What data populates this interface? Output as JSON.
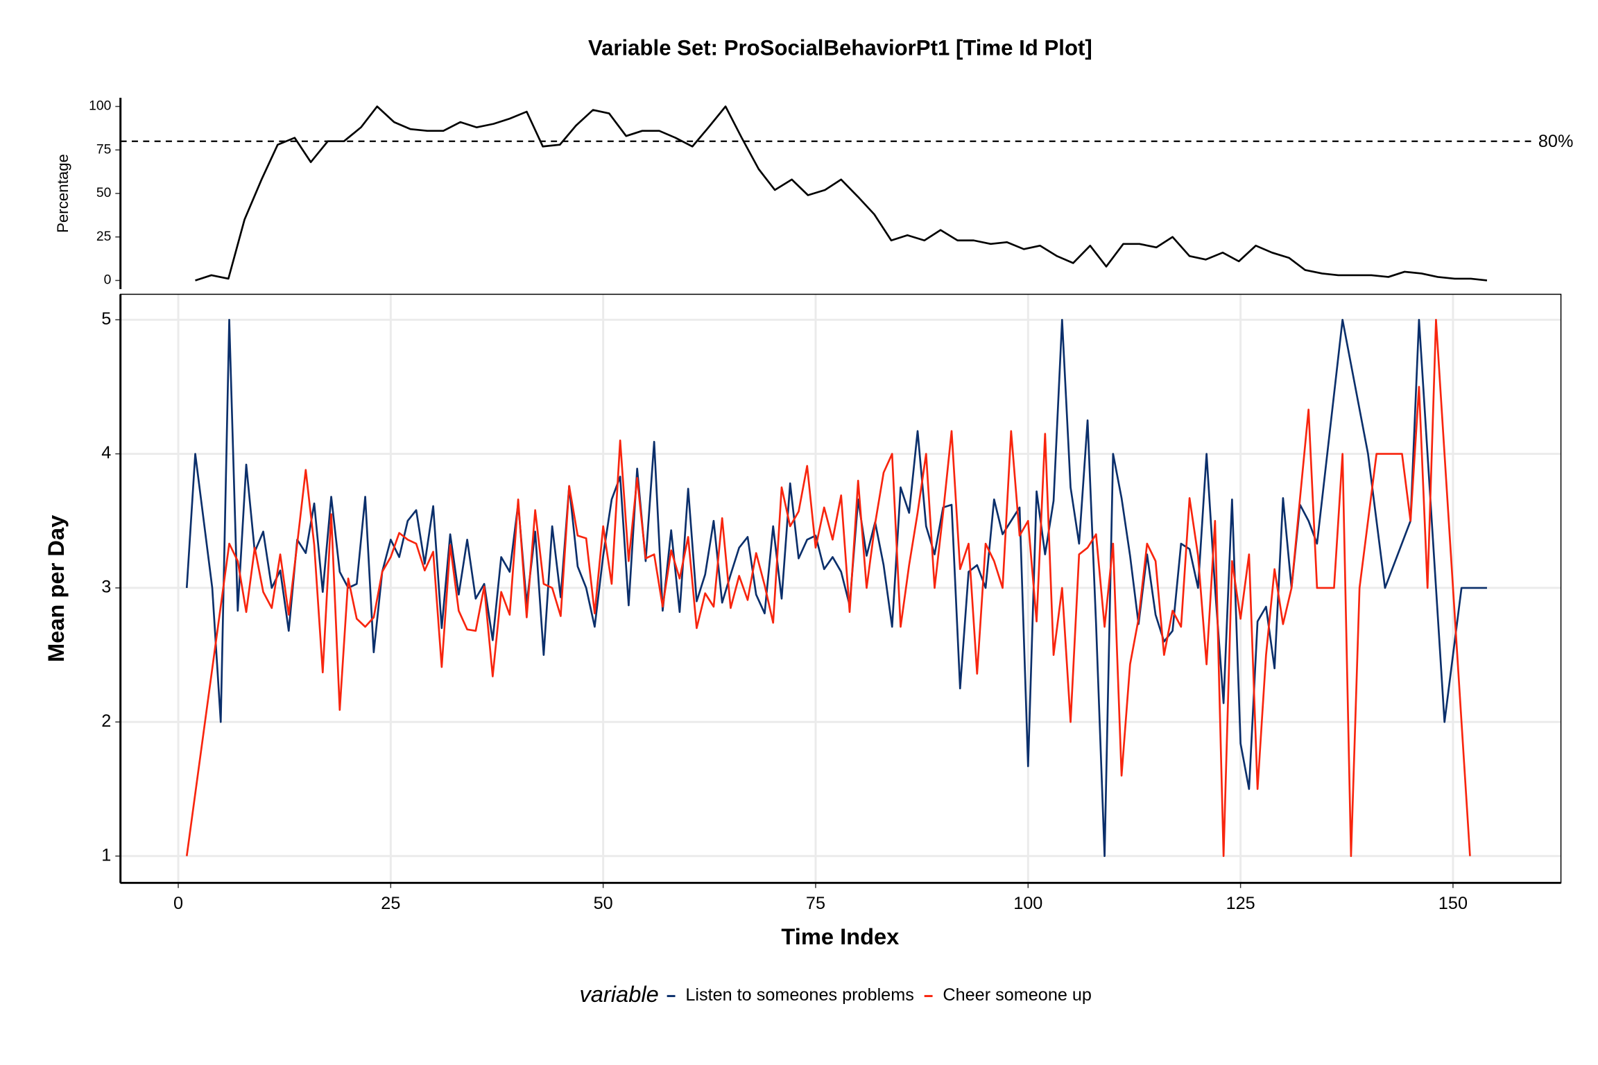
{
  "chart_data": [
    {
      "type": "line",
      "title": "Variable Set: ProSocialBehaviorPt1 [Time Id Plot]",
      "ylabel": "Percentage",
      "color": "#000000",
      "x": [
        2,
        3.9,
        5.9,
        7.8,
        9.8,
        11.7,
        13.7,
        15.6,
        17.6,
        19.5,
        21.5,
        23.4,
        25.4,
        27.3,
        29.3,
        31.2,
        33.2,
        35.1,
        37.1,
        39,
        41,
        42.9,
        44.9,
        46.8,
        48.8,
        50.7,
        52.7,
        54.6,
        56.6,
        58.5,
        60.5,
        62.4,
        64.4,
        66.3,
        68.3,
        70.2,
        72.2,
        74.1,
        76.1,
        78,
        80,
        81.9,
        83.9,
        85.8,
        87.8,
        89.7,
        91.7,
        93.6,
        95.6,
        97.5,
        99.5,
        101.4,
        103.4,
        105.3,
        107.3,
        109.2,
        111.2,
        113.1,
        115.1,
        117,
        119,
        120.9,
        122.9,
        124.8,
        126.8,
        128.7,
        130.7,
        132.6,
        134.6,
        136.5,
        138.5,
        140.4,
        142.4,
        144.3,
        146.3,
        148.2,
        150.2,
        152.1,
        154
      ],
      "values": [
        0,
        3,
        1,
        35,
        58,
        78,
        82,
        68,
        80,
        80,
        88,
        100,
        91,
        87,
        86,
        86,
        91,
        88,
        90,
        93,
        97,
        77,
        78,
        89,
        98,
        96,
        83,
        86,
        86,
        82,
        77,
        88,
        100,
        82,
        64,
        52,
        58,
        49,
        52,
        58,
        48,
        38,
        23,
        26,
        23,
        29,
        23,
        23,
        21,
        22,
        18,
        20,
        14,
        10,
        20,
        8,
        21,
        21,
        19,
        25,
        14,
        12,
        16,
        11,
        20,
        16,
        13,
        6,
        4,
        3,
        3,
        3,
        2,
        5,
        4,
        2,
        1,
        1,
        0
      ],
      "hline": {
        "value": 80,
        "label": "80%",
        "style": "dashed"
      },
      "xlim": [
        -6.8,
        162.7
      ],
      "ylim": [
        -5,
        105
      ],
      "yticks": [
        0,
        25,
        50,
        75,
        100
      ]
    },
    {
      "type": "line",
      "xlabel": "Time Index",
      "ylabel": "Mean per Day",
      "legend_title": "variable",
      "legend": "bottom",
      "grid": true,
      "xlim": [
        -6.8,
        162.7
      ],
      "xticks": [
        0,
        25,
        50,
        75,
        100,
        125,
        150
      ],
      "ylim": [
        0.8,
        5.19
      ],
      "yticks": [
        1,
        2,
        3,
        4,
        5
      ],
      "series": [
        {
          "name": "Listen to someones problems",
          "color": "#0b2f6b",
          "x": [
            1,
            2,
            4,
            5,
            6,
            7,
            8,
            9,
            10,
            11,
            12,
            13,
            14,
            15,
            16,
            17,
            18,
            19,
            20,
            21,
            22,
            23,
            24,
            25,
            26,
            27,
            28,
            29,
            30,
            31,
            32,
            33,
            34,
            35,
            36,
            37,
            38,
            39,
            40,
            41,
            42,
            43,
            44,
            45,
            46,
            47,
            48,
            49,
            50,
            51,
            52,
            53,
            54,
            55,
            56,
            57,
            58,
            59,
            60,
            61,
            62,
            63,
            64,
            65,
            66,
            67,
            68,
            69,
            70,
            71,
            72,
            73,
            74,
            75,
            76,
            77,
            78,
            79,
            80,
            81,
            82,
            83,
            84,
            85,
            86,
            87,
            88,
            89,
            90,
            91,
            92,
            93,
            94,
            95,
            96,
            97,
            98,
            99,
            100,
            101,
            102,
            103,
            104,
            105,
            106,
            107,
            108,
            109,
            110,
            111,
            112,
            113,
            114,
            115,
            116,
            117,
            118,
            119,
            120,
            121,
            122,
            123,
            124,
            125,
            126,
            127,
            128,
            129,
            130,
            131,
            132,
            133,
            134,
            137,
            140,
            142,
            145,
            146,
            148,
            149,
            151,
            154
          ],
          "values": [
            3,
            4,
            3,
            2,
            5,
            2.83,
            3.92,
            3.27,
            3.42,
            3,
            3.13,
            2.68,
            3.36,
            3.26,
            3.63,
            2.97,
            3.68,
            3.12,
            3,
            3.03,
            3.68,
            2.52,
            3.12,
            3.36,
            3.23,
            3.5,
            3.58,
            3.18,
            3.61,
            2.7,
            3.4,
            2.95,
            3.36,
            2.92,
            3.03,
            2.61,
            3.23,
            3.12,
            3.63,
            2.88,
            3.42,
            2.5,
            3.46,
            2.93,
            3.76,
            3.16,
            3,
            2.71,
            3.24,
            3.66,
            3.83,
            2.87,
            3.89,
            3.2,
            4.09,
            2.83,
            3.43,
            2.82,
            3.74,
            2.9,
            3.1,
            3.5,
            2.89,
            3.1,
            3.3,
            3.38,
            2.95,
            2.81,
            3.46,
            2.92,
            3.78,
            3.22,
            3.36,
            3.39,
            3.14,
            3.23,
            3.12,
            2.87,
            3.66,
            3.24,
            3.49,
            3.17,
            2.71,
            3.75,
            3.56,
            4.17,
            3.46,
            3.25,
            3.6,
            3.62,
            2.25,
            3.12,
            3.17,
            3,
            3.66,
            3.4,
            3.5,
            3.6,
            1.67,
            3.72,
            3.25,
            3.65,
            5,
            3.75,
            3.33,
            4.25,
            2.73,
            1,
            4,
            3.67,
            3.24,
            2.73,
            3.25,
            2.8,
            2.6,
            2.68,
            3.33,
            3.29,
            3,
            4,
            3,
            2.14,
            3.66,
            1.84,
            1.5,
            2.75,
            2.86,
            2.4,
            3.67,
            3,
            3.62,
            3.5,
            3.33,
            5,
            4,
            3,
            3.5,
            5,
            3,
            2,
            3,
            3
          ]
        },
        {
          "name": "Cheer someone up",
          "color": "#f8250e",
          "x": [
            1,
            6,
            7,
            8,
            9,
            10,
            11,
            12,
            13,
            14,
            15,
            16,
            17,
            18,
            19,
            20,
            21,
            22,
            23,
            24,
            25,
            26,
            27,
            28,
            29,
            30,
            31,
            32,
            33,
            34,
            35,
            36,
            37,
            38,
            39,
            40,
            41,
            42,
            43,
            44,
            45,
            46,
            47,
            48,
            49,
            50,
            51,
            52,
            53,
            54,
            55,
            56,
            57,
            58,
            59,
            60,
            61,
            62,
            63,
            64,
            65,
            66,
            67,
            68,
            69,
            70,
            71,
            72,
            73,
            74,
            75,
            76,
            77,
            78,
            79,
            80,
            81,
            82,
            83,
            84,
            85,
            86,
            87,
            88,
            89,
            90,
            91,
            92,
            93,
            94,
            95,
            96,
            97,
            98,
            99,
            100,
            101,
            102,
            103,
            104,
            105,
            106,
            107,
            108,
            109,
            110,
            111,
            112,
            113,
            114,
            115,
            116,
            117,
            118,
            119,
            120,
            121,
            122,
            123,
            124,
            125,
            126,
            127,
            128,
            129,
            130,
            131,
            132,
            133,
            134,
            136,
            137,
            138,
            139,
            141,
            144,
            145,
            146,
            147,
            148,
            152
          ],
          "values": [
            1,
            3.33,
            3.2,
            2.82,
            3.3,
            2.97,
            2.85,
            3.25,
            2.8,
            3.33,
            3.88,
            3.32,
            2.37,
            3.55,
            2.09,
            3.07,
            2.77,
            2.71,
            2.78,
            3.12,
            3.23,
            3.41,
            3.36,
            3.33,
            3.13,
            3.27,
            2.41,
            3.32,
            2.83,
            2.69,
            2.68,
            3.01,
            2.34,
            2.97,
            2.8,
            3.66,
            2.78,
            3.58,
            3.03,
            3,
            2.79,
            3.76,
            3.39,
            3.37,
            2.81,
            3.46,
            3.03,
            4.1,
            3.2,
            3.82,
            3.22,
            3.25,
            2.86,
            3.28,
            3.07,
            3.38,
            2.7,
            2.96,
            2.86,
            3.52,
            2.85,
            3.09,
            2.91,
            3.26,
            3.02,
            2.74,
            3.75,
            3.46,
            3.57,
            3.91,
            3.3,
            3.6,
            3.36,
            3.69,
            2.82,
            3.8,
            3,
            3.48,
            3.86,
            4,
            2.71,
            3.17,
            3.56,
            4,
            3,
            3.56,
            4.17,
            3.14,
            3.33,
            2.36,
            3.33,
            3.2,
            3,
            4.17,
            3.39,
            3.5,
            2.75,
            4.15,
            2.5,
            3,
            2,
            3.25,
            3.3,
            3.4,
            2.71,
            3.33,
            1.6,
            2.43,
            2.77,
            3.33,
            3.2,
            2.5,
            2.83,
            2.71,
            3.67,
            3.24,
            2.43,
            3.5,
            1,
            3.2,
            2.77,
            3.25,
            1.5,
            2.5,
            3.14,
            2.73,
            3,
            3.67,
            4.33,
            3,
            3,
            4,
            1,
            3,
            4,
            4,
            3.5,
            4.5,
            3,
            5,
            1
          ]
        }
      ]
    }
  ]
}
